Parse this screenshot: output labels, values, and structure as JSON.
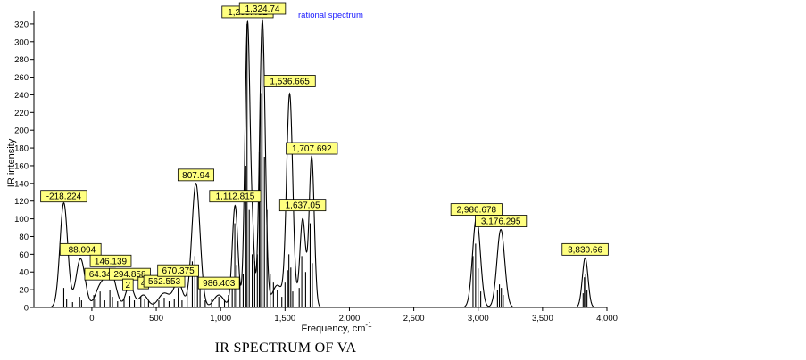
{
  "caption": "IR SPECTRUM OF VA",
  "chart_data": {
    "type": "line",
    "title": "",
    "legend_text": "rational spectrum",
    "xlabel": "Frequency, cm",
    "xlabel_superscript": "-1",
    "ylabel": "IR intensity",
    "xlim": [
      -450,
      4000
    ],
    "ylim": [
      0,
      335
    ],
    "x_ticks": [
      0,
      500,
      1000,
      1500,
      2000,
      2500,
      3000,
      3500,
      4000
    ],
    "x_tick_labels": [
      "0",
      "500",
      "1,000",
      "1,500",
      "2,000",
      "2,500",
      "3,000",
      "3,500",
      "4,000"
    ],
    "y_ticks": [
      0,
      20,
      40,
      60,
      80,
      100,
      120,
      140,
      160,
      180,
      200,
      220,
      240,
      260,
      280,
      300,
      320
    ],
    "y_tick_labels": [
      "0",
      "20",
      "40",
      "60",
      "80",
      "100",
      "120",
      "140",
      "160",
      "180",
      "200",
      "220",
      "240",
      "260",
      "280",
      "300",
      "320"
    ],
    "grid": false,
    "peak_labels": [
      {
        "text": "-218.224",
        "x": -218.224,
        "y": 118
      },
      {
        "text": "-88.094",
        "x": -88.094,
        "y": 58
      },
      {
        "text": "64.34",
        "x": 64.34,
        "y": 30
      },
      {
        "text": "146.139",
        "x": 146.139,
        "y": 45
      },
      {
        "text": "294.858",
        "x": 294.858,
        "y": 30
      },
      {
        "text": "2",
        "x": 280,
        "y": 18
      },
      {
        "text": "4",
        "x": 400,
        "y": 20
      },
      {
        "text": "562.553",
        "x": 562.553,
        "y": 22
      },
      {
        "text": "670.375",
        "x": 670.375,
        "y": 34
      },
      {
        "text": "807.94",
        "x": 807.94,
        "y": 142
      },
      {
        "text": "986.403",
        "x": 986.403,
        "y": 20
      },
      {
        "text": "1,112.815",
        "x": 1112.815,
        "y": 118
      },
      {
        "text": "1,209.482",
        "x": 1209.482,
        "y": 326
      },
      {
        "text": "1,324.74",
        "x": 1324.74,
        "y": 330
      },
      {
        "text": "1,536.665",
        "x": 1536.665,
        "y": 248
      },
      {
        "text": "1,637.05",
        "x": 1637.05,
        "y": 108
      },
      {
        "text": "1,707.692",
        "x": 1707.692,
        "y": 172
      },
      {
        "text": "2,986.678",
        "x": 2986.678,
        "y": 103
      },
      {
        "text": "3,176.295",
        "x": 3176.295,
        "y": 90
      },
      {
        "text": "3,830.66",
        "x": 3830.66,
        "y": 58
      }
    ],
    "sticks": [
      {
        "x": -218,
        "y": 22
      },
      {
        "x": -196,
        "y": 10
      },
      {
        "x": -150,
        "y": 6
      },
      {
        "x": -95,
        "y": 12
      },
      {
        "x": -80,
        "y": 8
      },
      {
        "x": 15,
        "y": 14
      },
      {
        "x": 30,
        "y": 9
      },
      {
        "x": 64,
        "y": 18
      },
      {
        "x": 100,
        "y": 8
      },
      {
        "x": 140,
        "y": 20
      },
      {
        "x": 160,
        "y": 12
      },
      {
        "x": 200,
        "y": 7
      },
      {
        "x": 250,
        "y": 9
      },
      {
        "x": 295,
        "y": 13
      },
      {
        "x": 330,
        "y": 8
      },
      {
        "x": 380,
        "y": 12
      },
      {
        "x": 410,
        "y": 9
      },
      {
        "x": 440,
        "y": 7
      },
      {
        "x": 480,
        "y": 6
      },
      {
        "x": 520,
        "y": 8
      },
      {
        "x": 562,
        "y": 11
      },
      {
        "x": 600,
        "y": 7
      },
      {
        "x": 640,
        "y": 10
      },
      {
        "x": 670,
        "y": 22
      },
      {
        "x": 700,
        "y": 8
      },
      {
        "x": 740,
        "y": 18
      },
      {
        "x": 780,
        "y": 52
      },
      {
        "x": 800,
        "y": 58
      },
      {
        "x": 820,
        "y": 48
      },
      {
        "x": 840,
        "y": 25
      },
      {
        "x": 880,
        "y": 8
      },
      {
        "x": 930,
        "y": 9
      },
      {
        "x": 986,
        "y": 12
      },
      {
        "x": 1030,
        "y": 8
      },
      {
        "x": 1060,
        "y": 14
      },
      {
        "x": 1090,
        "y": 22
      },
      {
        "x": 1110,
        "y": 95
      },
      {
        "x": 1125,
        "y": 48
      },
      {
        "x": 1150,
        "y": 30
      },
      {
        "x": 1175,
        "y": 38
      },
      {
        "x": 1195,
        "y": 160
      },
      {
        "x": 1205,
        "y": 320
      },
      {
        "x": 1222,
        "y": 110
      },
      {
        "x": 1245,
        "y": 60
      },
      {
        "x": 1265,
        "y": 52
      },
      {
        "x": 1285,
        "y": 60
      },
      {
        "x": 1300,
        "y": 175
      },
      {
        "x": 1310,
        "y": 242
      },
      {
        "x": 1322,
        "y": 330
      },
      {
        "x": 1340,
        "y": 170
      },
      {
        "x": 1360,
        "y": 110
      },
      {
        "x": 1385,
        "y": 38
      },
      {
        "x": 1410,
        "y": 28
      },
      {
        "x": 1440,
        "y": 20
      },
      {
        "x": 1475,
        "y": 12
      },
      {
        "x": 1500,
        "y": 28
      },
      {
        "x": 1520,
        "y": 42
      },
      {
        "x": 1530,
        "y": 60
      },
      {
        "x": 1545,
        "y": 45
      },
      {
        "x": 1560,
        "y": 18
      },
      {
        "x": 1610,
        "y": 22
      },
      {
        "x": 1630,
        "y": 58
      },
      {
        "x": 1660,
        "y": 40
      },
      {
        "x": 1695,
        "y": 95
      },
      {
        "x": 1712,
        "y": 50
      },
      {
        "x": 2960,
        "y": 58
      },
      {
        "x": 2980,
        "y": 72
      },
      {
        "x": 3000,
        "y": 44
      },
      {
        "x": 3020,
        "y": 18
      },
      {
        "x": 3150,
        "y": 20
      },
      {
        "x": 3165,
        "y": 26
      },
      {
        "x": 3180,
        "y": 22
      },
      {
        "x": 3195,
        "y": 14
      },
      {
        "x": 3815,
        "y": 16
      },
      {
        "x": 3825,
        "y": 34
      },
      {
        "x": 3835,
        "y": 38
      },
      {
        "x": 3845,
        "y": 20
      }
    ],
    "curve_peaks": [
      {
        "x": -218,
        "y": 118,
        "w": 30
      },
      {
        "x": -88,
        "y": 55,
        "w": 35
      },
      {
        "x": 64,
        "y": 22,
        "w": 38
      },
      {
        "x": 146,
        "y": 40,
        "w": 40
      },
      {
        "x": 294,
        "y": 26,
        "w": 30
      },
      {
        "x": 400,
        "y": 14,
        "w": 35
      },
      {
        "x": 562,
        "y": 16,
        "w": 45
      },
      {
        "x": 670,
        "y": 28,
        "w": 35
      },
      {
        "x": 808,
        "y": 140,
        "w": 32
      },
      {
        "x": 986,
        "y": 14,
        "w": 40
      },
      {
        "x": 1112,
        "y": 115,
        "w": 22
      },
      {
        "x": 1209,
        "y": 322,
        "w": 20
      },
      {
        "x": 1250,
        "y": 60,
        "w": 14
      },
      {
        "x": 1324,
        "y": 324,
        "w": 22
      },
      {
        "x": 1440,
        "y": 25,
        "w": 40
      },
      {
        "x": 1536,
        "y": 240,
        "w": 24
      },
      {
        "x": 1637,
        "y": 100,
        "w": 22
      },
      {
        "x": 1707,
        "y": 170,
        "w": 20
      },
      {
        "x": 2987,
        "y": 102,
        "w": 30
      },
      {
        "x": 3176,
        "y": 88,
        "w": 30
      },
      {
        "x": 3831,
        "y": 56,
        "w": 22
      }
    ],
    "colors": {
      "curve": "#000000",
      "sticks": "#000000",
      "label_fill": "#ffff80",
      "label_border": "#000000",
      "legend": "#1a1aff"
    }
  }
}
